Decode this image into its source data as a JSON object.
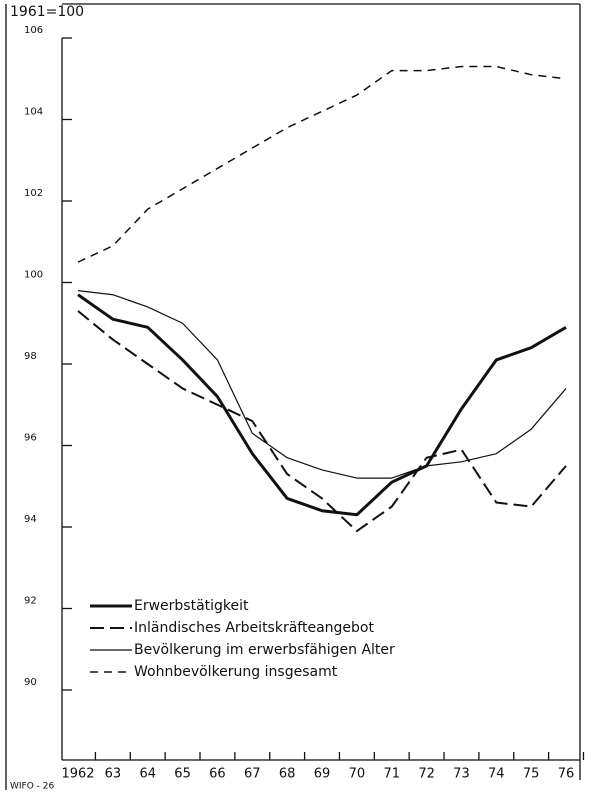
{
  "chart_data": {
    "type": "line",
    "subtitle": "1961=100",
    "source": "WIFO - 26",
    "categories": [
      "1962",
      "63",
      "64",
      "65",
      "66",
      "67",
      "68",
      "69",
      "70",
      "71",
      "72",
      "73",
      "74",
      "75",
      "76"
    ],
    "ylim": [
      88.3,
      106
    ],
    "yticks": [
      90,
      92,
      94,
      96,
      98,
      100,
      102,
      104,
      106
    ],
    "legend": "lower left",
    "series": [
      {
        "name": "Erwerbstätigkeit",
        "color": "#111111",
        "line_width": 3,
        "dash": "none",
        "values": [
          99.7,
          99.1,
          98.9,
          98.1,
          97.2,
          95.8,
          94.7,
          94.4,
          94.3,
          95.1,
          95.5,
          96.9,
          98.1,
          98.4,
          98.9
        ]
      },
      {
        "name": "Inländisches Arbeitskräfteangebot",
        "color": "#111111",
        "line_width": 2,
        "dash": "14 6",
        "values": [
          99.3,
          98.6,
          98.0,
          97.4,
          97.0,
          96.6,
          95.3,
          94.7,
          93.9,
          94.5,
          95.7,
          95.9,
          94.6,
          94.5,
          95.5
        ]
      },
      {
        "name": "Bevölkerung im erwerbsfähigen Alter",
        "color": "#111111",
        "line_width": 1.2,
        "dash": "none",
        "values": [
          99.8,
          99.7,
          99.4,
          99.0,
          98.1,
          96.3,
          95.7,
          95.4,
          95.2,
          95.2,
          95.5,
          95.6,
          95.8,
          96.4,
          97.4
        ]
      },
      {
        "name": "Wohnbevölkerung insgesamt",
        "color": "#111111",
        "line_width": 1.5,
        "dash": "8 6",
        "values": [
          100.5,
          100.9,
          101.8,
          102.3,
          102.8,
          103.3,
          103.8,
          104.2,
          104.6,
          105.2,
          105.2,
          105.3,
          105.3,
          105.1,
          105.0
        ]
      }
    ]
  }
}
